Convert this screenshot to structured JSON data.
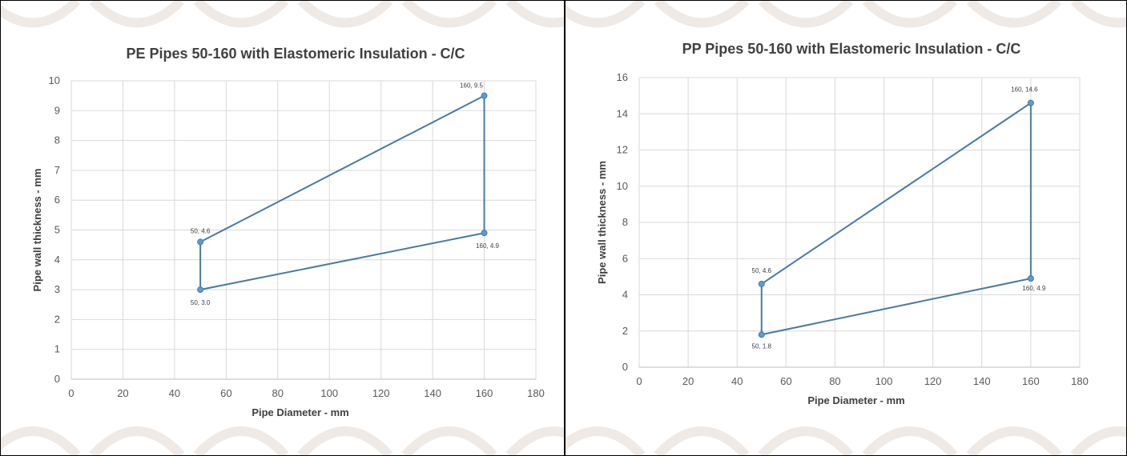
{
  "colors": {
    "series": "#4a79a5",
    "marker": "#5b9bd5",
    "grid": "#d9d9d9",
    "text": "#595959",
    "title": "#404040",
    "background_pattern": "#efeae6"
  },
  "chart_data": [
    {
      "type": "line",
      "title": "PE Pipes 50-160 with Elastomeric Insulation - C/C",
      "xlabel": "Pipe Diameter - mm",
      "ylabel": "Pipe wall thickness - mm",
      "xlim": [
        0,
        180
      ],
      "ylim": [
        0,
        10
      ],
      "xticks": [
        0,
        20,
        40,
        60,
        80,
        100,
        120,
        140,
        160,
        180
      ],
      "yticks": [
        0,
        1,
        2,
        3,
        4,
        5,
        6,
        7,
        8,
        9,
        10
      ],
      "grid": true,
      "legend": "none",
      "series": [
        {
          "x": [
            50,
            160,
            160,
            50,
            50
          ],
          "y": [
            4.6,
            9.5,
            4.9,
            3.0,
            4.6
          ],
          "labels": [
            "50, 4.6",
            "160, 9.5",
            "160, 4.9",
            "50, 3.0",
            ""
          ]
        }
      ]
    },
    {
      "type": "line",
      "title": "PP Pipes 50-160 with Elastomeric Insulation - C/C",
      "xlabel": "Pipe Diameter - mm",
      "ylabel": "Pipe wall thickness - mm",
      "xlim": [
        0,
        180
      ],
      "ylim": [
        0,
        16
      ],
      "xticks": [
        0,
        20,
        40,
        60,
        80,
        100,
        120,
        140,
        160,
        180
      ],
      "yticks": [
        0,
        2,
        4,
        6,
        8,
        10,
        12,
        14,
        16
      ],
      "grid": true,
      "legend": "none",
      "series": [
        {
          "x": [
            50,
            160,
            160,
            50,
            50
          ],
          "y": [
            4.6,
            14.6,
            4.9,
            1.8,
            4.6
          ],
          "labels": [
            "50, 4.6",
            "160, 14.6",
            "160, 4.9",
            "50, 1.8",
            ""
          ]
        }
      ]
    }
  ]
}
